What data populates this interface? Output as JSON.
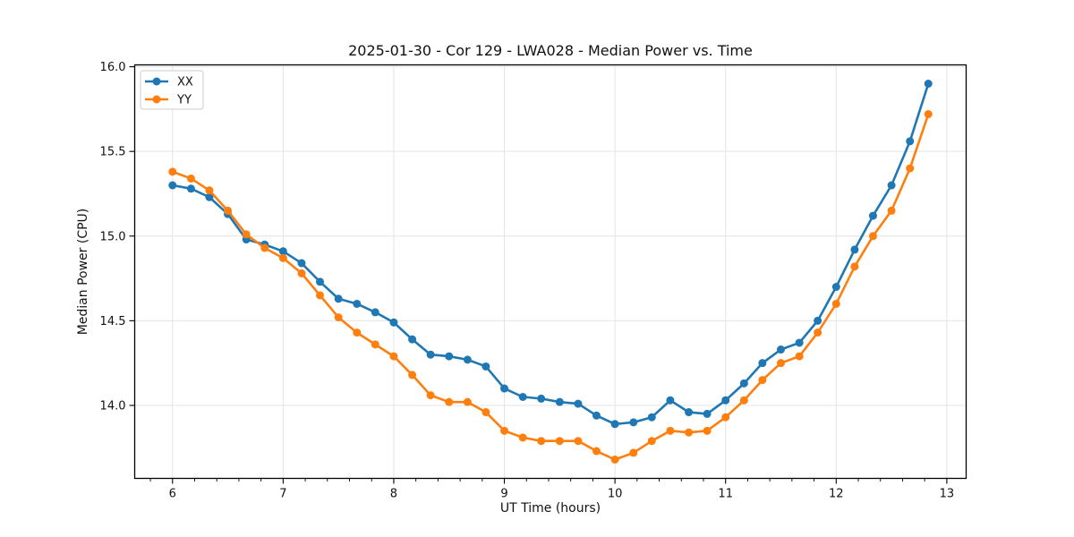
{
  "chart_data": {
    "type": "line",
    "title": "2025-01-30 - Cor 129 - LWA028 - Median Power vs. Time",
    "xlabel": "UT Time (hours)",
    "ylabel": "Median Power (CPU)",
    "xlim": [
      5.658,
      13.175
    ],
    "ylim": [
      13.569,
      16.011
    ],
    "xticks": [
      6,
      7,
      8,
      9,
      10,
      11,
      12,
      13
    ],
    "yticks": [
      14.0,
      14.5,
      15.0,
      15.5,
      16.0
    ],
    "ytick_labels": [
      "14.0",
      "14.5",
      "15.0",
      "15.5",
      "16.0"
    ],
    "minor_tick_step_x": 0.2,
    "grid": true,
    "legend_position": "upper left",
    "background_color": "#ffffff",
    "grid_color": "#e4e4e4",
    "x": [
      6,
      6.167,
      6.333,
      6.5,
      6.667,
      6.833,
      7,
      7.167,
      7.333,
      7.5,
      7.667,
      7.833,
      8,
      8.167,
      8.333,
      8.5,
      8.667,
      8.833,
      9,
      9.167,
      9.333,
      9.5,
      9.667,
      9.833,
      10,
      10.167,
      10.333,
      10.5,
      10.667,
      10.833,
      11,
      11.167,
      11.333,
      11.5,
      11.667,
      11.833,
      12,
      12.167,
      12.333,
      12.5,
      12.667,
      12.833
    ],
    "series": [
      {
        "name": "XX",
        "color": "#1f77b4",
        "marker": "circle",
        "values": [
          15.3,
          15.28,
          15.23,
          15.13,
          14.98,
          14.95,
          14.91,
          14.84,
          14.73,
          14.63,
          14.6,
          14.55,
          14.49,
          14.39,
          14.3,
          14.29,
          14.27,
          14.23,
          14.1,
          14.05,
          14.04,
          14.02,
          14.01,
          13.94,
          13.89,
          13.9,
          13.93,
          14.03,
          13.96,
          13.95,
          14.03,
          14.13,
          14.25,
          14.33,
          14.37,
          14.5,
          14.7,
          14.92,
          15.12,
          15.3,
          15.56,
          15.9
        ]
      },
      {
        "name": "YY",
        "color": "#ff7f0e",
        "marker": "circle",
        "values": [
          15.38,
          15.34,
          15.27,
          15.15,
          15.01,
          14.93,
          14.87,
          14.78,
          14.65,
          14.52,
          14.43,
          14.36,
          14.29,
          14.18,
          14.06,
          14.02,
          14.02,
          13.96,
          13.85,
          13.81,
          13.79,
          13.79,
          13.79,
          13.73,
          13.68,
          13.72,
          13.79,
          13.85,
          13.84,
          13.85,
          13.93,
          14.03,
          14.15,
          14.25,
          14.29,
          14.43,
          14.6,
          14.82,
          15.0,
          15.15,
          15.4,
          15.72
        ]
      }
    ]
  }
}
